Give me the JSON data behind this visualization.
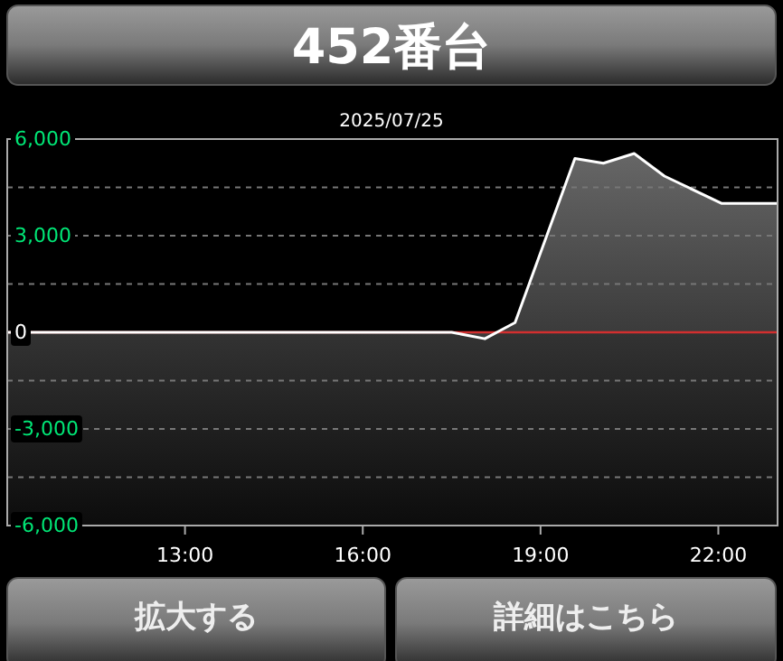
{
  "chart_data": {
    "type": "area",
    "title": "452番台",
    "subtitle": "2025/07/25",
    "x": [
      10,
      17.5,
      18.06,
      18.57,
      19.58,
      20.06,
      20.58,
      21.09,
      22.06,
      23
    ],
    "series": [
      {
        "color": "#ffffff",
        "values": [
          0,
          0,
          -200,
          300,
          5400,
          5250,
          5550,
          4850,
          4000,
          4000
        ]
      }
    ],
    "xlim": [
      10,
      23
    ],
    "xticks": [
      {
        "value": 13,
        "label": "13:00"
      },
      {
        "value": 16,
        "label": "16:00"
      },
      {
        "value": 19,
        "label": "19:00"
      },
      {
        "value": 22,
        "label": "22:00"
      }
    ],
    "ylim": [
      -6000,
      6000
    ],
    "yticks": [
      {
        "value": -6000,
        "label": "-6,000"
      },
      {
        "value": -4500,
        "label": null
      },
      {
        "value": -3000,
        "label": "-3,000"
      },
      {
        "value": -1500,
        "label": null
      },
      0,
      {
        "value": 1500,
        "label": null
      },
      {
        "value": 3000,
        "label": "3,000"
      },
      {
        "value": 4500,
        "label": null
      },
      {
        "value": 6000,
        "label": "6,000"
      }
    ],
    "grid": "y",
    "marker": "none",
    "ref_lines": [
      {
        "axis": "y",
        "value": 0,
        "color": "#d32f2f"
      }
    ],
    "annotations": [
      "拡大する",
      "詳細はこちら"
    ]
  }
}
